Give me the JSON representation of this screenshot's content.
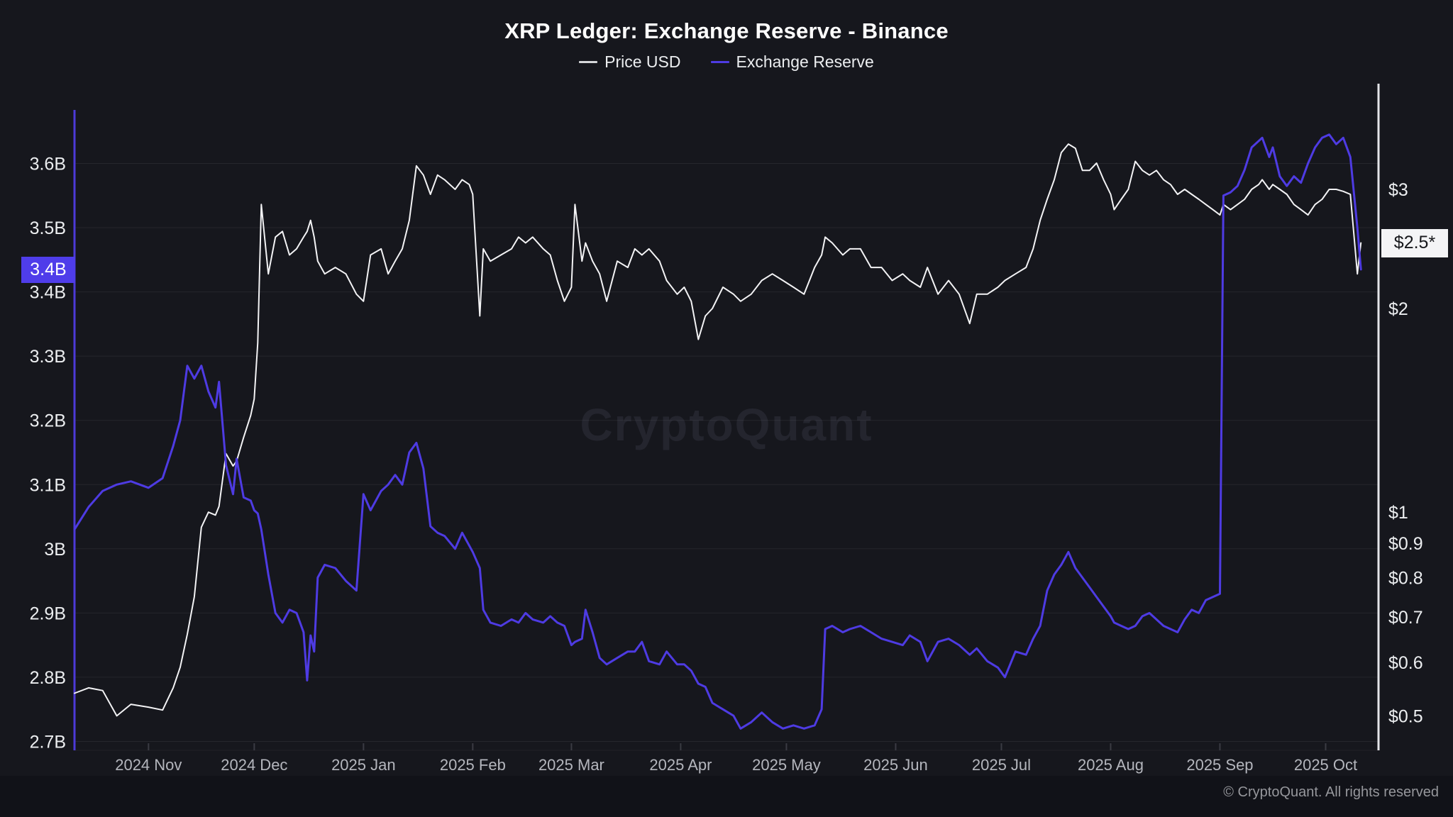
{
  "header": {
    "title": "XRP Ledger: Exchange Reserve - Binance",
    "legend": [
      {
        "label": "Price USD",
        "color": "#d6d7da"
      },
      {
        "label": "Exchange Reserve",
        "color": "#4e3be3"
      }
    ]
  },
  "watermark": "CryptoQuant",
  "footer": {
    "copyright": "© CryptoQuant. All rights reserved"
  },
  "chart_data": {
    "type": "line",
    "title": "XRP Ledger: Exchange Reserve - Binance",
    "x_domain": [
      "2024-10-11",
      "2025-10-16"
    ],
    "grid": "horizontal-only",
    "legend_position": "top-center",
    "x_axis": {
      "labels": [
        {
          "date": "2024-11-01",
          "text": "2024 Nov"
        },
        {
          "date": "2024-12-01",
          "text": "2024 Dec"
        },
        {
          "date": "2025-01-01",
          "text": "2025 Jan"
        },
        {
          "date": "2025-02-01",
          "text": "2025 Feb"
        },
        {
          "date": "2025-03-01",
          "text": "2025 Mar"
        },
        {
          "date": "2025-04-01",
          "text": "2025 Apr"
        },
        {
          "date": "2025-05-01",
          "text": "2025 May"
        },
        {
          "date": "2025-06-01",
          "text": "2025 Jun"
        },
        {
          "date": "2025-07-01",
          "text": "2025 Jul"
        },
        {
          "date": "2025-08-01",
          "text": "2025 Aug"
        },
        {
          "date": "2025-09-01",
          "text": "2025 Sep"
        },
        {
          "date": "2025-10-01",
          "text": "2025 Oct"
        }
      ]
    },
    "left_axis": {
      "series": "Exchange Reserve",
      "unit": "XRP (billions)",
      "scale": "linear",
      "range": [
        2.65,
        3.7
      ],
      "ticks": [
        {
          "v": 3.6,
          "label": "3.6B"
        },
        {
          "v": 3.5,
          "label": "3.5B"
        },
        {
          "v": 3.4,
          "label": "3.4B"
        },
        {
          "v": 3.3,
          "label": "3.3B"
        },
        {
          "v": 3.2,
          "label": "3.2B"
        },
        {
          "v": 3.1,
          "label": "3.1B"
        },
        {
          "v": 3.0,
          "label": "3B"
        },
        {
          "v": 2.9,
          "label": "2.9B"
        },
        {
          "v": 2.8,
          "label": "2.8B"
        },
        {
          "v": 2.7,
          "label": "2.7B"
        }
      ],
      "current_badge": {
        "label": "3.4B",
        "value": 3.435
      },
      "axis_color": "#4c3ad8"
    },
    "right_axis": {
      "series": "Price USD",
      "unit": "USD",
      "scale": "log",
      "range": [
        0.45,
        3.8
      ],
      "ticks": [
        {
          "v": 3,
          "label": "$3"
        },
        {
          "v": 2,
          "label": "$2"
        },
        {
          "v": 1,
          "label": "$1"
        },
        {
          "v": 0.9,
          "label": "$0.9"
        },
        {
          "v": 0.8,
          "label": "$0.8"
        },
        {
          "v": 0.7,
          "label": "$0.7"
        },
        {
          "v": 0.6,
          "label": "$0.6"
        },
        {
          "v": 0.5,
          "label": "$0.5"
        }
      ],
      "current_badge": {
        "label": "$2.5*",
        "value": 2.5
      },
      "axis_color": "#e4e5e9"
    },
    "series": [
      {
        "name": "Price USD",
        "axis": "right",
        "color": "#f3f3f5",
        "width": 2,
        "column": 1
      },
      {
        "name": "Exchange Reserve",
        "axis": "left",
        "color": "#4e3be3",
        "width": 3,
        "column": 2
      }
    ],
    "columns": [
      "date",
      "price_usd",
      "exchange_reserve_billion_xrp"
    ],
    "points": [
      [
        "2024-10-11",
        0.54,
        3.03
      ],
      [
        "2024-10-15",
        0.55,
        3.065
      ],
      [
        "2024-10-19",
        0.545,
        3.09
      ],
      [
        "2024-10-23",
        0.5,
        3.1
      ],
      [
        "2024-10-27",
        0.52,
        3.105
      ],
      [
        "2024-11-01",
        0.515,
        3.095
      ],
      [
        "2024-11-05",
        0.51,
        3.11
      ],
      [
        "2024-11-08",
        0.55,
        3.16
      ],
      [
        "2024-11-10",
        0.59,
        3.2
      ],
      [
        "2024-11-12",
        0.66,
        3.285
      ],
      [
        "2024-11-14",
        0.75,
        3.265
      ],
      [
        "2024-11-16",
        0.95,
        3.285
      ],
      [
        "2024-11-18",
        1.0,
        3.245
      ],
      [
        "2024-11-20",
        0.99,
        3.22
      ],
      [
        "2024-11-21",
        1.02,
        3.26
      ],
      [
        "2024-11-23",
        1.22,
        3.13
      ],
      [
        "2024-11-25",
        1.17,
        3.085
      ],
      [
        "2024-11-26",
        1.19,
        3.14
      ],
      [
        "2024-11-28",
        1.29,
        3.08
      ],
      [
        "2024-11-30",
        1.39,
        3.075
      ],
      [
        "2024-12-01",
        1.47,
        3.06
      ],
      [
        "2024-12-02",
        1.78,
        3.055
      ],
      [
        "2024-12-03",
        2.85,
        3.03
      ],
      [
        "2024-12-05",
        2.25,
        2.96
      ],
      [
        "2024-12-07",
        2.55,
        2.9
      ],
      [
        "2024-12-09",
        2.6,
        2.885
      ],
      [
        "2024-12-11",
        2.4,
        2.905
      ],
      [
        "2024-12-13",
        2.45,
        2.9
      ],
      [
        "2024-12-15",
        2.55,
        2.87
      ],
      [
        "2024-12-16",
        2.6,
        2.795
      ],
      [
        "2024-12-17",
        2.7,
        2.865
      ],
      [
        "2024-12-18",
        2.55,
        2.84
      ],
      [
        "2024-12-19",
        2.35,
        2.955
      ],
      [
        "2024-12-21",
        2.25,
        2.975
      ],
      [
        "2024-12-24",
        2.3,
        2.97
      ],
      [
        "2024-12-27",
        2.25,
        2.95
      ],
      [
        "2024-12-30",
        2.1,
        2.935
      ],
      [
        "2025-01-01",
        2.05,
        3.085
      ],
      [
        "2025-01-03",
        2.4,
        3.06
      ],
      [
        "2025-01-06",
        2.45,
        3.09
      ],
      [
        "2025-01-08",
        2.25,
        3.1
      ],
      [
        "2025-01-10",
        2.35,
        3.115
      ],
      [
        "2025-01-12",
        2.45,
        3.1
      ],
      [
        "2025-01-14",
        2.7,
        3.15
      ],
      [
        "2025-01-16",
        3.25,
        3.165
      ],
      [
        "2025-01-18",
        3.15,
        3.125
      ],
      [
        "2025-01-20",
        2.95,
        3.035
      ],
      [
        "2025-01-22",
        3.15,
        3.025
      ],
      [
        "2025-01-24",
        3.1,
        3.02
      ],
      [
        "2025-01-27",
        3.0,
        3.0
      ],
      [
        "2025-01-29",
        3.1,
        3.025
      ],
      [
        "2025-01-31",
        3.05,
        3.005
      ],
      [
        "2025-02-01",
        2.95,
        2.995
      ],
      [
        "2025-02-03",
        1.95,
        2.97
      ],
      [
        "2025-02-04",
        2.45,
        2.905
      ],
      [
        "2025-02-06",
        2.35,
        2.885
      ],
      [
        "2025-02-09",
        2.4,
        2.88
      ],
      [
        "2025-02-12",
        2.45,
        2.89
      ],
      [
        "2025-02-14",
        2.55,
        2.885
      ],
      [
        "2025-02-16",
        2.5,
        2.9
      ],
      [
        "2025-02-18",
        2.55,
        2.89
      ],
      [
        "2025-02-21",
        2.45,
        2.885
      ],
      [
        "2025-02-23",
        2.4,
        2.895
      ],
      [
        "2025-02-25",
        2.2,
        2.885
      ],
      [
        "2025-02-27",
        2.05,
        2.88
      ],
      [
        "2025-03-01",
        2.15,
        2.85
      ],
      [
        "2025-03-02",
        2.85,
        2.855
      ],
      [
        "2025-03-04",
        2.35,
        2.86
      ],
      [
        "2025-03-05",
        2.5,
        2.905
      ],
      [
        "2025-03-07",
        2.35,
        2.87
      ],
      [
        "2025-03-09",
        2.25,
        2.83
      ],
      [
        "2025-03-11",
        2.05,
        2.82
      ],
      [
        "2025-03-14",
        2.35,
        2.83
      ],
      [
        "2025-03-17",
        2.3,
        2.84
      ],
      [
        "2025-03-19",
        2.45,
        2.84
      ],
      [
        "2025-03-21",
        2.4,
        2.855
      ],
      [
        "2025-03-23",
        2.45,
        2.825
      ],
      [
        "2025-03-26",
        2.35,
        2.82
      ],
      [
        "2025-03-28",
        2.2,
        2.84
      ],
      [
        "2025-03-31",
        2.1,
        2.82
      ],
      [
        "2025-04-02",
        2.15,
        2.82
      ],
      [
        "2025-04-04",
        2.05,
        2.81
      ],
      [
        "2025-04-06",
        1.8,
        2.79
      ],
      [
        "2025-04-08",
        1.95,
        2.785
      ],
      [
        "2025-04-10",
        2.0,
        2.76
      ],
      [
        "2025-04-13",
        2.15,
        2.75
      ],
      [
        "2025-04-16",
        2.1,
        2.74
      ],
      [
        "2025-04-18",
        2.05,
        2.72
      ],
      [
        "2025-04-21",
        2.1,
        2.73
      ],
      [
        "2025-04-24",
        2.2,
        2.745
      ],
      [
        "2025-04-27",
        2.25,
        2.73
      ],
      [
        "2025-04-30",
        2.2,
        2.72
      ],
      [
        "2025-05-03",
        2.15,
        2.725
      ],
      [
        "2025-05-06",
        2.1,
        2.72
      ],
      [
        "2025-05-09",
        2.3,
        2.725
      ],
      [
        "2025-05-11",
        2.4,
        2.75
      ],
      [
        "2025-05-12",
        2.55,
        2.875
      ],
      [
        "2025-05-14",
        2.5,
        2.88
      ],
      [
        "2025-05-17",
        2.4,
        2.87
      ],
      [
        "2025-05-19",
        2.45,
        2.875
      ],
      [
        "2025-05-22",
        2.45,
        2.88
      ],
      [
        "2025-05-25",
        2.3,
        2.87
      ],
      [
        "2025-05-28",
        2.3,
        2.86
      ],
      [
        "2025-05-31",
        2.2,
        2.855
      ],
      [
        "2025-06-03",
        2.25,
        2.85
      ],
      [
        "2025-06-05",
        2.2,
        2.865
      ],
      [
        "2025-06-08",
        2.15,
        2.855
      ],
      [
        "2025-06-10",
        2.3,
        2.825
      ],
      [
        "2025-06-13",
        2.1,
        2.855
      ],
      [
        "2025-06-16",
        2.2,
        2.86
      ],
      [
        "2025-06-19",
        2.1,
        2.85
      ],
      [
        "2025-06-22",
        1.9,
        2.835
      ],
      [
        "2025-06-24",
        2.1,
        2.845
      ],
      [
        "2025-06-27",
        2.1,
        2.825
      ],
      [
        "2025-06-30",
        2.15,
        2.815
      ],
      [
        "2025-07-02",
        2.2,
        2.8
      ],
      [
        "2025-07-05",
        2.25,
        2.84
      ],
      [
        "2025-07-08",
        2.3,
        2.835
      ],
      [
        "2025-07-10",
        2.45,
        2.86
      ],
      [
        "2025-07-12",
        2.7,
        2.88
      ],
      [
        "2025-07-14",
        2.9,
        2.935
      ],
      [
        "2025-07-16",
        3.1,
        2.96
      ],
      [
        "2025-07-18",
        3.4,
        2.975
      ],
      [
        "2025-07-20",
        3.5,
        2.995
      ],
      [
        "2025-07-22",
        3.45,
        2.97
      ],
      [
        "2025-07-24",
        3.2,
        2.955
      ],
      [
        "2025-07-26",
        3.2,
        2.94
      ],
      [
        "2025-07-28",
        3.28,
        2.925
      ],
      [
        "2025-07-30",
        3.1,
        2.91
      ],
      [
        "2025-08-01",
        2.95,
        2.895
      ],
      [
        "2025-08-02",
        2.8,
        2.885
      ],
      [
        "2025-08-04",
        2.9,
        2.88
      ],
      [
        "2025-08-06",
        3.0,
        2.875
      ],
      [
        "2025-08-08",
        3.3,
        2.88
      ],
      [
        "2025-08-10",
        3.2,
        2.895
      ],
      [
        "2025-08-12",
        3.15,
        2.9
      ],
      [
        "2025-08-14",
        3.2,
        2.89
      ],
      [
        "2025-08-16",
        3.1,
        2.88
      ],
      [
        "2025-08-18",
        3.05,
        2.875
      ],
      [
        "2025-08-20",
        2.95,
        2.87
      ],
      [
        "2025-08-22",
        3.0,
        2.89
      ],
      [
        "2025-08-24",
        2.95,
        2.905
      ],
      [
        "2025-08-26",
        2.9,
        2.9
      ],
      [
        "2025-08-28",
        2.85,
        2.92
      ],
      [
        "2025-08-30",
        2.8,
        2.925
      ],
      [
        "2025-09-01",
        2.75,
        2.93
      ],
      [
        "2025-09-02",
        2.85,
        3.55
      ],
      [
        "2025-09-04",
        2.8,
        3.555
      ],
      [
        "2025-09-06",
        2.85,
        3.565
      ],
      [
        "2025-09-08",
        2.9,
        3.59
      ],
      [
        "2025-09-10",
        3.0,
        3.625
      ],
      [
        "2025-09-12",
        3.05,
        3.635
      ],
      [
        "2025-09-13",
        3.1,
        3.64
      ],
      [
        "2025-09-15",
        3.0,
        3.61
      ],
      [
        "2025-09-16",
        3.05,
        3.625
      ],
      [
        "2025-09-18",
        3.0,
        3.58
      ],
      [
        "2025-09-20",
        2.95,
        3.565
      ],
      [
        "2025-09-22",
        2.85,
        3.58
      ],
      [
        "2025-09-24",
        2.8,
        3.57
      ],
      [
        "2025-09-26",
        2.75,
        3.6
      ],
      [
        "2025-09-28",
        2.85,
        3.625
      ],
      [
        "2025-09-30",
        2.9,
        3.64
      ],
      [
        "2025-10-02",
        3.0,
        3.645
      ],
      [
        "2025-10-04",
        3.0,
        3.63
      ],
      [
        "2025-10-06",
        2.98,
        3.64
      ],
      [
        "2025-10-08",
        2.95,
        3.61
      ],
      [
        "2025-10-10",
        2.25,
        3.5
      ],
      [
        "2025-10-11",
        2.5,
        3.435
      ]
    ]
  }
}
